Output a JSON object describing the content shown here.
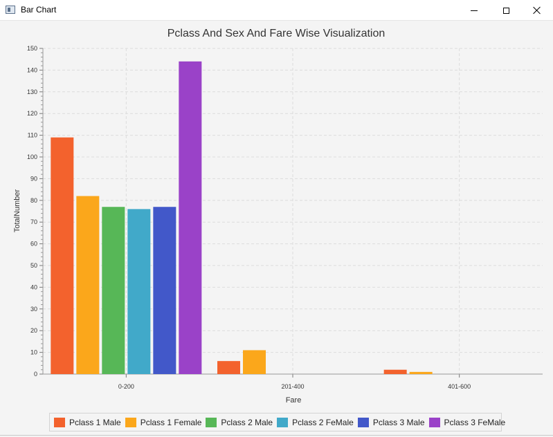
{
  "window": {
    "title": "Bar Chart",
    "icon": "app-window-icon",
    "controls": [
      "minimize-icon",
      "maximize-icon",
      "close-icon"
    ]
  },
  "chart_data": {
    "type": "bar",
    "title": "Pclass And Sex And Fare Wise Visualization",
    "xlabel": "Fare",
    "ylabel": "TotalNumber",
    "categories": [
      "0-200",
      "201-400",
      "401-600"
    ],
    "ylim": [
      0,
      150
    ],
    "ytick_step": 10,
    "grid": true,
    "legend_position": "bottom",
    "series": [
      {
        "name": "Pclass 1 Male",
        "color": "#f3622d",
        "values": [
          109,
          6,
          2
        ]
      },
      {
        "name": "Pclass 1 Female",
        "color": "#fba71b",
        "values": [
          82,
          11,
          1
        ]
      },
      {
        "name": "Pclass 2 Male",
        "color": "#57b757",
        "values": [
          77,
          0,
          0
        ]
      },
      {
        "name": "Pclass 2 FeMale",
        "color": "#41a9c9",
        "values": [
          76,
          0,
          0
        ]
      },
      {
        "name": "Pclass 3 Male",
        "color": "#4258c9",
        "values": [
          77,
          0,
          0
        ]
      },
      {
        "name": "Pclass 3 FeMale",
        "color": "#9a42c8",
        "values": [
          144,
          0,
          0
        ]
      }
    ]
  }
}
